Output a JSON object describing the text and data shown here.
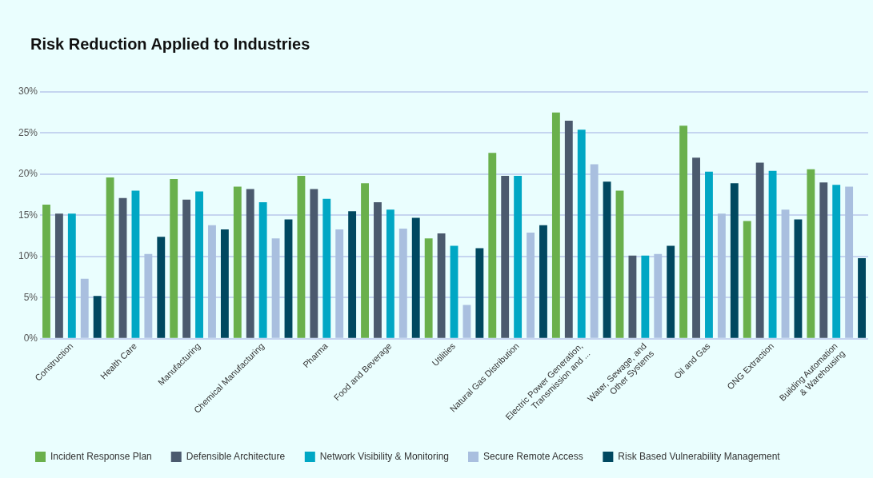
{
  "chart_data": {
    "type": "bar",
    "title": "Risk Reduction Applied to Industries",
    "categories": [
      "Construction",
      "Health Care",
      "Manufacturing",
      "Chemical Manufacturing",
      "Pharma",
      "Food and Beverage",
      "Utilities",
      "Natural Gas Distribution",
      "Electric Power Generation,\nTransmission and ...",
      "Water, Sewage, and\nOther Systems",
      "Oil and Gas",
      "ONG Extraction",
      "Building Automation\n& Warehousing"
    ],
    "series": [
      {
        "name": "Incident Response Plan",
        "color": "#6ab04c",
        "values": [
          16.3,
          19.6,
          19.4,
          18.5,
          19.8,
          18.9,
          12.2,
          22.6,
          27.5,
          18.0,
          25.9,
          14.3,
          20.6
        ]
      },
      {
        "name": "Defensible Architecture",
        "color": "#4b5a6e",
        "values": [
          15.2,
          17.1,
          16.9,
          18.2,
          18.2,
          16.6,
          12.8,
          19.8,
          26.5,
          10.1,
          22.0,
          21.4,
          19.0
        ]
      },
      {
        "name": "Network Visibility & Monitoring",
        "color": "#00a7c4",
        "values": [
          15.2,
          18.0,
          17.9,
          16.6,
          17.0,
          15.7,
          11.3,
          19.8,
          25.4,
          10.1,
          20.3,
          20.4,
          18.7
        ]
      },
      {
        "name": "Secure Remote Access",
        "color": "#a9bfdf",
        "values": [
          7.3,
          10.3,
          13.8,
          12.2,
          13.3,
          13.4,
          4.1,
          12.9,
          21.2,
          10.3,
          15.2,
          15.7,
          18.5
        ]
      },
      {
        "name": "Risk Based Vulnerability Management",
        "color": "#004860",
        "values": [
          5.2,
          12.4,
          13.3,
          14.5,
          15.5,
          14.7,
          11.0,
          13.8,
          19.1,
          11.3,
          18.9,
          14.5,
          9.8
        ]
      }
    ],
    "ylim": [
      0,
      30
    ],
    "yticks": [
      {
        "value": 0,
        "label": "0%"
      },
      {
        "value": 5,
        "label": "5%"
      },
      {
        "value": 10,
        "label": "10%"
      },
      {
        "value": 15,
        "label": "15%"
      },
      {
        "value": 20,
        "label": "20%"
      },
      {
        "value": 25,
        "label": "25%"
      },
      {
        "value": 30,
        "label": "30%"
      }
    ],
    "grid": "y",
    "legend": "bottom"
  }
}
